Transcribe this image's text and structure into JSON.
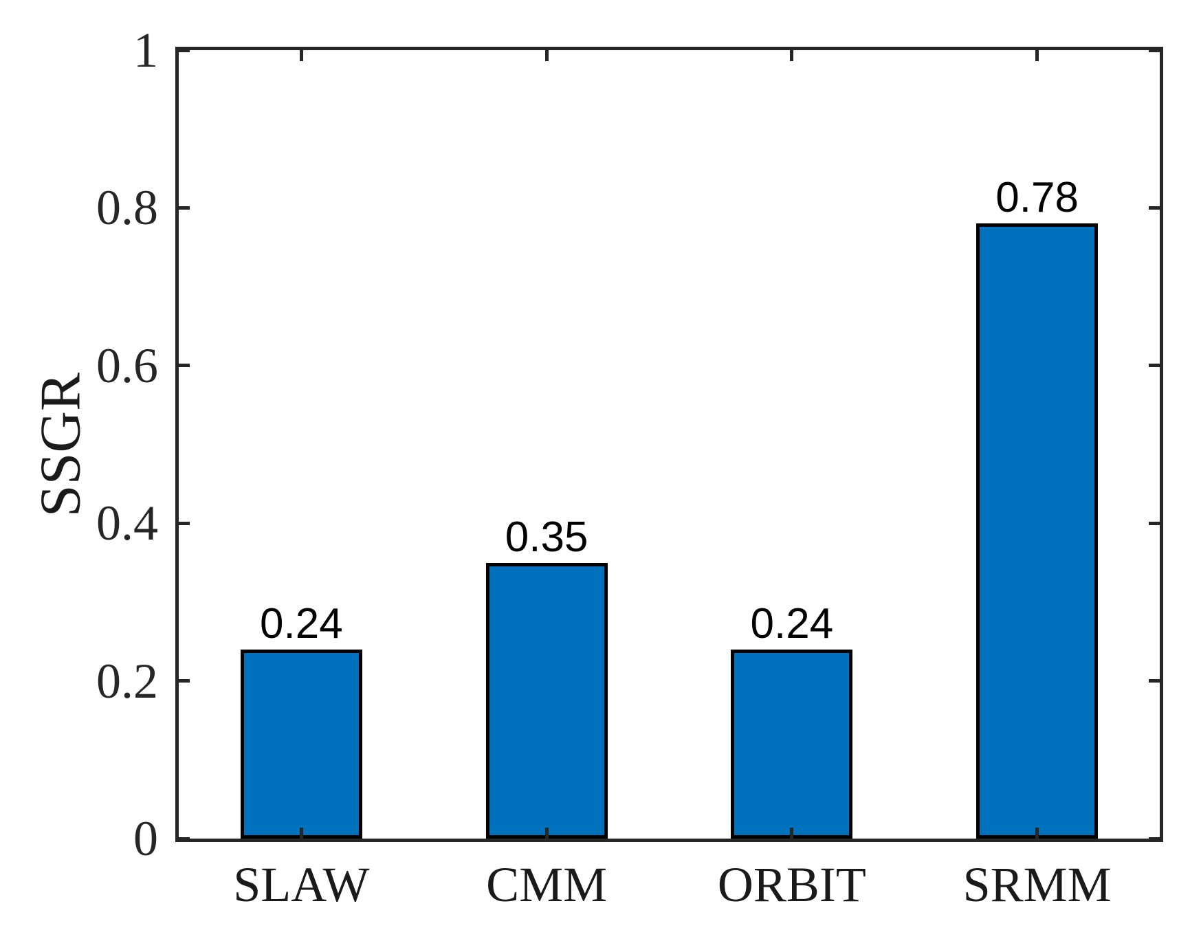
{
  "figure": {
    "background_color": "#ffffff"
  },
  "chart_data": {
    "type": "bar",
    "title": "",
    "xlabel": "",
    "ylabel": "SSGR",
    "categories": [
      "SLAW",
      "CMM",
      "ORBIT",
      "SRMM"
    ],
    "values": [
      0.24,
      0.35,
      0.24,
      0.78
    ],
    "value_labels": [
      "0.24",
      "0.35",
      "0.24",
      "0.78"
    ],
    "ylim": [
      0,
      1
    ],
    "xlim_category_units": [
      0.5,
      4.5
    ],
    "yticks": [
      0,
      0.2,
      0.4,
      0.6,
      0.8,
      1
    ],
    "ytick_labels": [
      "0",
      "0.2",
      "0.4",
      "0.6",
      "0.8",
      "1"
    ],
    "grid": false,
    "legend": null,
    "box": true,
    "tick_direction": "in",
    "bar_fill_color": "#0072BD",
    "bar_edge_color": "#000000",
    "axis_color": "#262626"
  }
}
